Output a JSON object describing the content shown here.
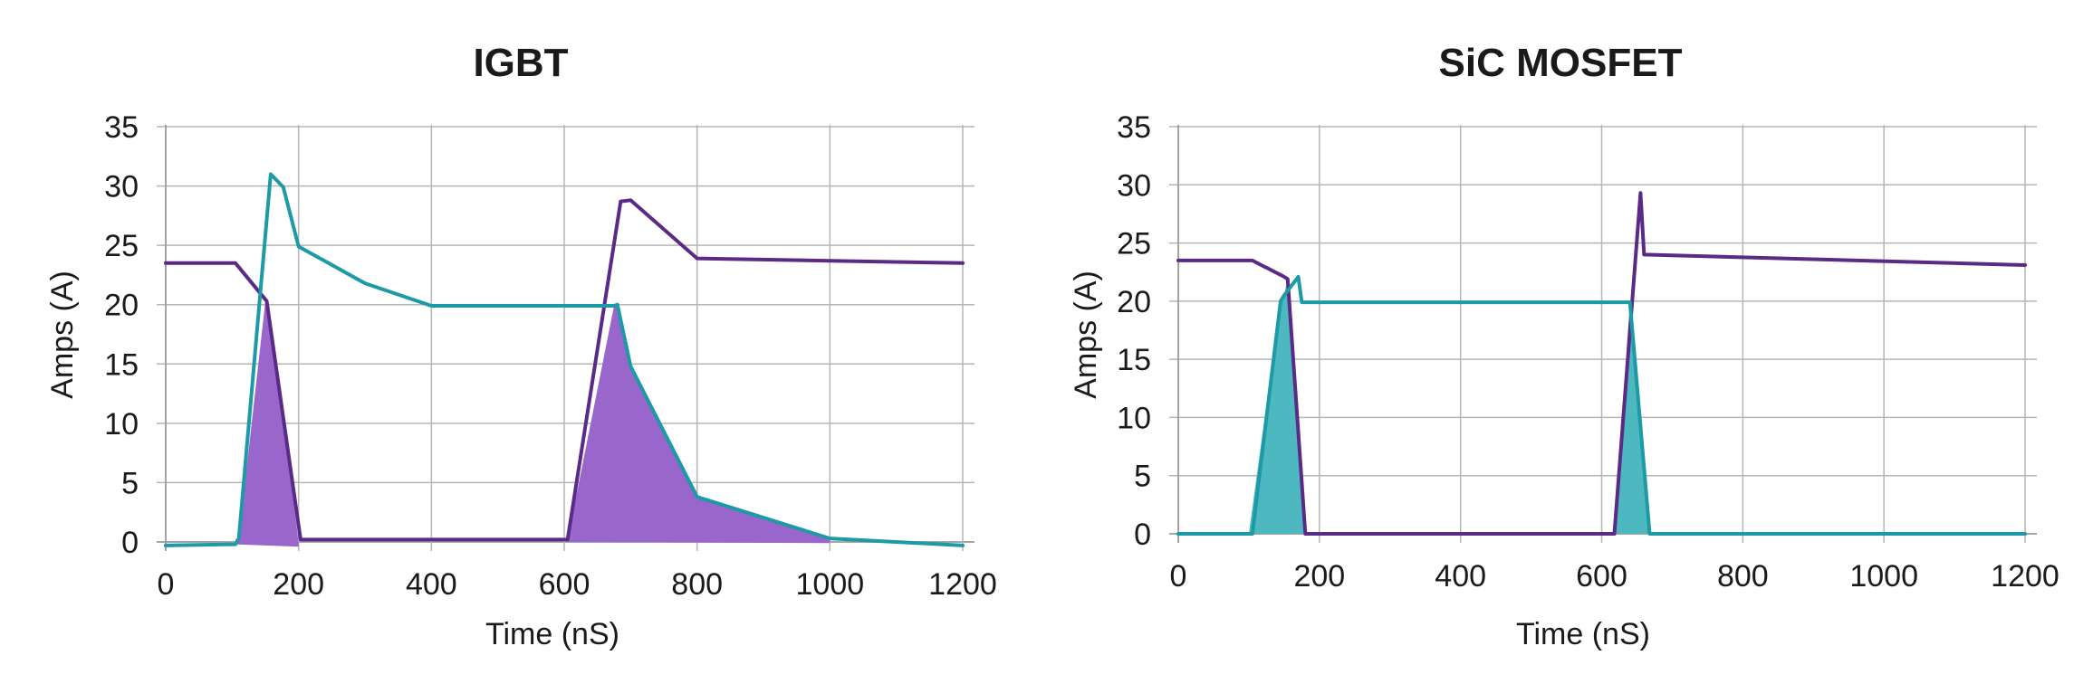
{
  "chart_data": [
    {
      "type": "line",
      "title": "IGBT",
      "xlabel": "Time (nS)",
      "ylabel": "Amps (A)",
      "xlim": [
        0,
        1200
      ],
      "ylim": [
        0,
        35
      ],
      "xticks": [
        "0",
        "200",
        "400",
        "600",
        "800",
        "1000",
        "1200"
      ],
      "yticks": [
        "0",
        "5",
        "10",
        "15",
        "20",
        "25",
        "30",
        "35"
      ],
      "grid": true,
      "series": [
        {
          "color": "#5b2a86",
          "points": [
            [
              0,
              23.5
            ],
            [
              105,
              23.5
            ],
            [
              152,
              20.3
            ],
            [
              203,
              0.2
            ],
            [
              605,
              0.2
            ],
            [
              685,
              28.7
            ],
            [
              700,
              28.8
            ],
            [
              800,
              23.9
            ],
            [
              1200,
              23.5
            ]
          ]
        },
        {
          "color": "#1c9aa6",
          "points": [
            [
              0,
              -0.3
            ],
            [
              105,
              -0.2
            ],
            [
              110,
              0.3
            ],
            [
              158,
              31.0
            ],
            [
              177,
              29.9
            ],
            [
              200,
              24.9
            ],
            [
              300,
              21.8
            ],
            [
              400,
              19.9
            ],
            [
              675,
              19.9
            ],
            [
              680,
              20.0
            ],
            [
              700,
              14.8
            ],
            [
              800,
              3.8
            ],
            [
              1000,
              0.3
            ],
            [
              1200,
              -0.3
            ]
          ]
        }
      ],
      "shaded": [
        {
          "color": "#9966cc",
          "points": [
            [
              105,
              0.2
            ],
            [
              110,
              0.3
            ],
            [
              150,
              20.3
            ],
            [
              155,
              20.0
            ],
            [
              200,
              0.0
            ],
            [
              200,
              -0.4
            ],
            [
              105,
              -0.2
            ]
          ]
        },
        {
          "color": "#9966cc",
          "points": [
            [
              605,
              0.2
            ],
            [
              675,
              19.9
            ],
            [
              680,
              20.0
            ],
            [
              700,
              14.8
            ],
            [
              800,
              3.8
            ],
            [
              1000,
              0.2
            ],
            [
              1000,
              -0.1
            ],
            [
              605,
              0.0
            ]
          ]
        }
      ]
    },
    {
      "type": "line",
      "title": "SiC MOSFET",
      "xlabel": "Time (nS)",
      "ylabel": "Amps (A)",
      "xlim": [
        0,
        1200
      ],
      "ylim": [
        0,
        35
      ],
      "xticks": [
        "0",
        "200",
        "400",
        "600",
        "800",
        "1000",
        "1200"
      ],
      "yticks": [
        "0",
        "5",
        "10",
        "15",
        "20",
        "25",
        "30",
        "35"
      ],
      "grid": true,
      "series": [
        {
          "color": "#5b2a86",
          "points": [
            [
              0,
              23.5
            ],
            [
              105,
              23.5
            ],
            [
              150,
              22.1
            ],
            [
              155,
              21.9
            ],
            [
              180,
              0.0
            ],
            [
              618,
              0.0
            ],
            [
              655,
              29.3
            ],
            [
              660,
              24.0
            ],
            [
              1200,
              23.1
            ]
          ]
        },
        {
          "color": "#1c9aa6",
          "points": [
            [
              0,
              0.0
            ],
            [
              105,
              0.0
            ],
            [
              145,
              20.0
            ],
            [
              150,
              20.5
            ],
            [
              170,
              22.1
            ],
            [
              175,
              19.9
            ],
            [
              640,
              19.9
            ],
            [
              668,
              0.0
            ],
            [
              1200,
              0.0
            ]
          ]
        }
      ],
      "shaded": [
        {
          "color": "#4db8c0",
          "points": [
            [
              100,
              0.0
            ],
            [
              145,
              20.0
            ],
            [
              150,
              20.5
            ],
            [
              155,
              22.0
            ],
            [
              180,
              0.0
            ]
          ]
        },
        {
          "color": "#4db8c0",
          "points": [
            [
              618,
              0.0
            ],
            [
              640,
              19.9
            ],
            [
              668,
              0.0
            ]
          ]
        }
      ]
    }
  ]
}
